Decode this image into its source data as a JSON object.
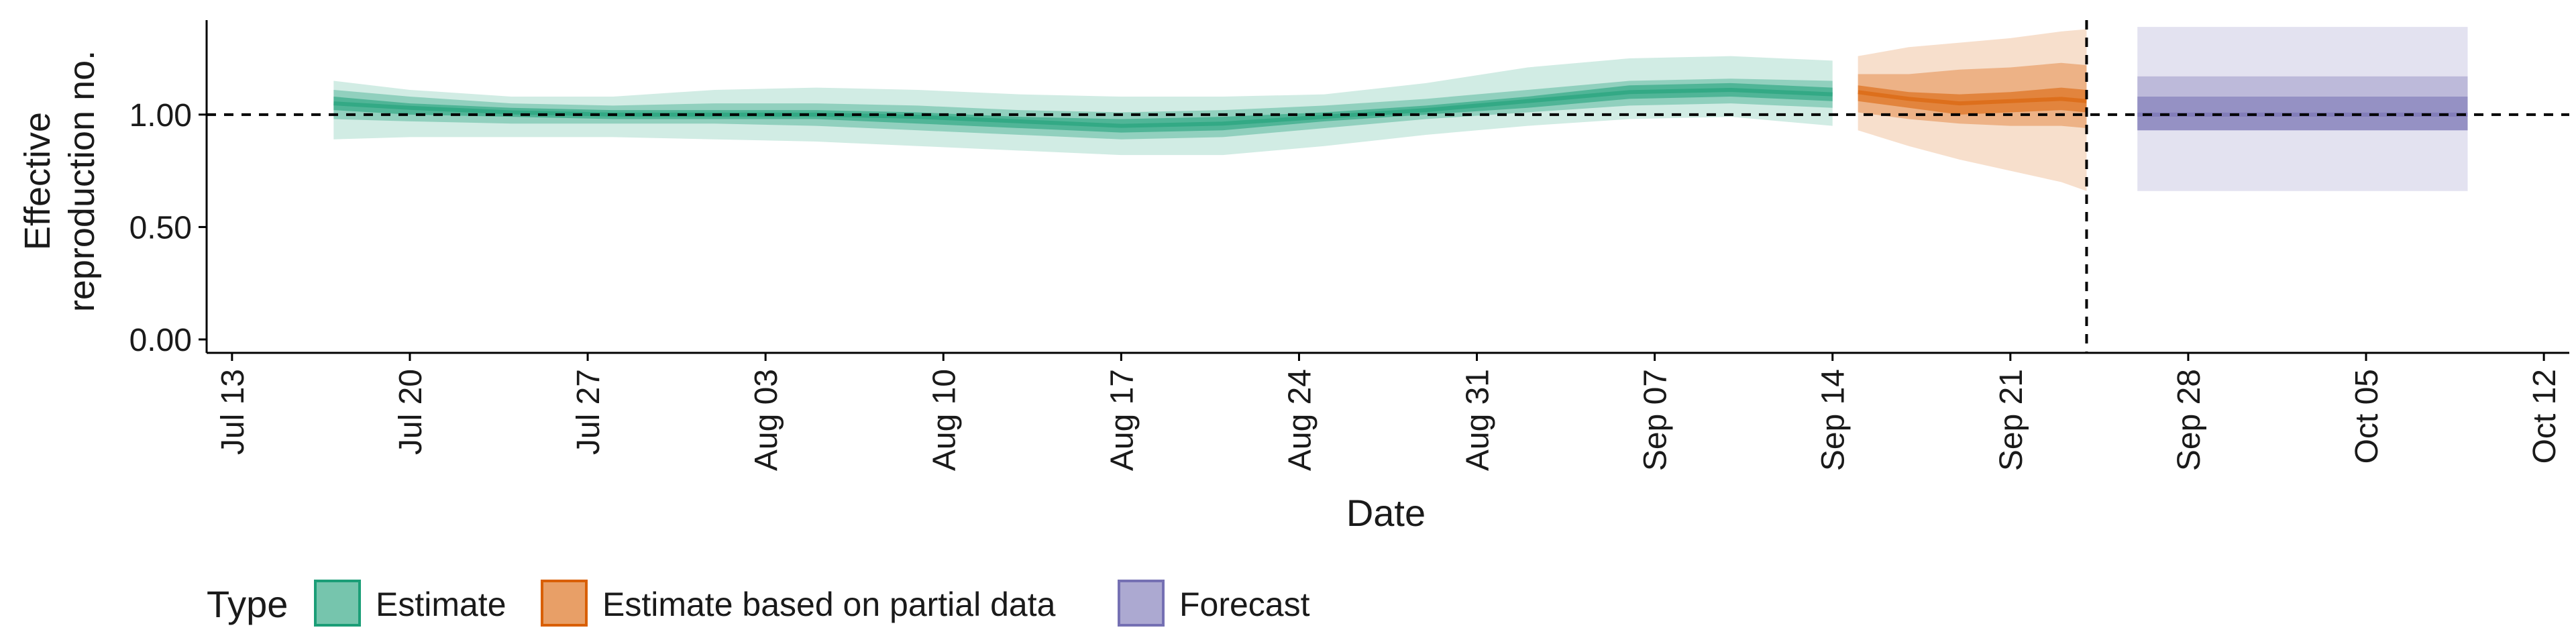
{
  "chart_data": {
    "type": "area",
    "title": "",
    "xlabel": "Date",
    "ylabel_lines": [
      "Effective",
      "reproduction no."
    ],
    "x_ticks": [
      "Jul 13",
      "Jul 20",
      "Jul 27",
      "Aug 03",
      "Aug 10",
      "Aug 17",
      "Aug 24",
      "Aug 31",
      "Sep 07",
      "Sep 14",
      "Sep 21",
      "Sep 28",
      "Oct 05",
      "Oct 12"
    ],
    "y_ticks": [
      "0.00",
      "0.50",
      "1.00"
    ],
    "ylim": [
      0,
      1.45
    ],
    "xlim": [
      "2020-07-12",
      "2020-10-13"
    ],
    "reference_line_y": 1.0,
    "reference_line_date": "2020-09-24",
    "grid": false,
    "legend": {
      "position": "bottom-left",
      "title": "Type",
      "items": [
        {
          "label": "Estimate",
          "color": "#1b9e77"
        },
        {
          "label": "Estimate based on partial data",
          "color": "#d95f02"
        },
        {
          "label": "Forecast",
          "color": "#7570b3"
        }
      ]
    },
    "series": [
      {
        "name": "Estimate",
        "color": "#1b9e77",
        "x": [
          "2020-07-17",
          "2020-07-20",
          "2020-07-24",
          "2020-07-28",
          "2020-08-01",
          "2020-08-05",
          "2020-08-09",
          "2020-08-13",
          "2020-08-17",
          "2020-08-21",
          "2020-08-25",
          "2020-08-29",
          "2020-09-02",
          "2020-09-06",
          "2020-09-10",
          "2020-09-14"
        ],
        "median": [
          1.05,
          1.03,
          1.01,
          1.0,
          1.0,
          1.0,
          0.99,
          0.97,
          0.95,
          0.96,
          0.99,
          1.02,
          1.06,
          1.1,
          1.11,
          1.09
        ],
        "lower_20": [
          1.02,
          1.0,
          0.99,
          0.98,
          0.98,
          0.98,
          0.96,
          0.94,
          0.92,
          0.93,
          0.97,
          1.0,
          1.03,
          1.07,
          1.08,
          1.06
        ],
        "upper_20": [
          1.08,
          1.05,
          1.03,
          1.02,
          1.02,
          1.02,
          1.01,
          0.99,
          0.98,
          0.99,
          1.01,
          1.04,
          1.08,
          1.13,
          1.14,
          1.12
        ],
        "lower_50": [
          0.98,
          0.97,
          0.96,
          0.96,
          0.96,
          0.95,
          0.93,
          0.91,
          0.89,
          0.9,
          0.94,
          0.98,
          1.01,
          1.04,
          1.05,
          1.03
        ],
        "upper_50": [
          1.11,
          1.08,
          1.05,
          1.04,
          1.05,
          1.05,
          1.04,
          1.02,
          1.01,
          1.02,
          1.04,
          1.07,
          1.11,
          1.15,
          1.16,
          1.15
        ],
        "lower_90": [
          0.89,
          0.9,
          0.9,
          0.9,
          0.89,
          0.88,
          0.86,
          0.84,
          0.82,
          0.82,
          0.86,
          0.91,
          0.95,
          0.98,
          0.99,
          0.95
        ],
        "upper_90": [
          1.15,
          1.11,
          1.08,
          1.08,
          1.11,
          1.12,
          1.11,
          1.09,
          1.08,
          1.08,
          1.09,
          1.14,
          1.21,
          1.25,
          1.26,
          1.24
        ]
      },
      {
        "name": "Estimate based on partial data",
        "color": "#d95f02",
        "x": [
          "2020-09-15",
          "2020-09-17",
          "2020-09-19",
          "2020-09-21",
          "2020-09-23",
          "2020-09-24"
        ],
        "median": [
          1.1,
          1.07,
          1.05,
          1.06,
          1.07,
          1.06
        ],
        "lower_20": [
          1.06,
          1.03,
          1.0,
          1.01,
          1.02,
          1.01
        ],
        "upper_20": [
          1.13,
          1.1,
          1.09,
          1.1,
          1.12,
          1.11
        ],
        "lower_50": [
          1.01,
          0.98,
          0.96,
          0.95,
          0.95,
          0.94
        ],
        "upper_50": [
          1.18,
          1.18,
          1.2,
          1.21,
          1.23,
          1.22
        ],
        "lower_90": [
          0.93,
          0.86,
          0.8,
          0.75,
          0.7,
          0.66
        ],
        "upper_90": [
          1.26,
          1.3,
          1.32,
          1.34,
          1.37,
          1.38
        ]
      },
      {
        "name": "Forecast",
        "color": "#7570b3",
        "x": [
          "2020-09-26",
          "2020-10-09"
        ],
        "median": [
          1.0,
          1.0
        ],
        "lower_20": [
          0.93,
          0.93
        ],
        "upper_20": [
          1.08,
          1.08
        ],
        "lower_50": [
          0.93,
          0.93
        ],
        "upper_50": [
          1.17,
          1.17
        ],
        "lower_90": [
          0.66,
          0.66
        ],
        "upper_90": [
          1.39,
          1.39
        ]
      }
    ]
  }
}
